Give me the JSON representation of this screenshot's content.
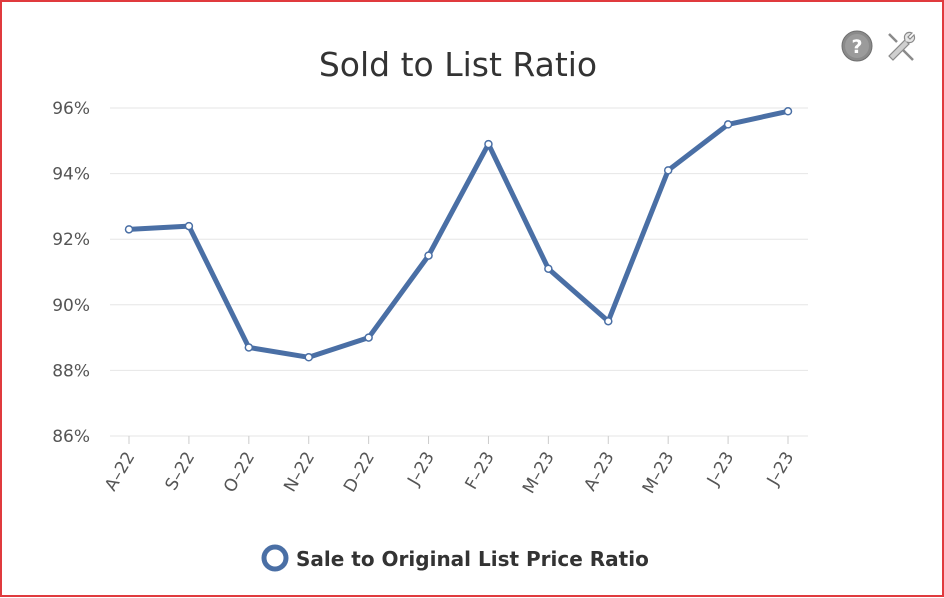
{
  "icons": {
    "help": "help-icon",
    "help_glyph": "?",
    "tools": "tools-icon"
  },
  "colors": {
    "border": "#e03a3e",
    "series": "#4a6fa5",
    "grid": "#e6e6e6"
  },
  "chart_data": {
    "type": "line",
    "title": "Sold to List Ratio",
    "xlabel": "",
    "ylabel": "",
    "categories": [
      "A–22",
      "S–22",
      "O–22",
      "N–22",
      "D–22",
      "J–23",
      "F–23",
      "M–23",
      "A–23",
      "M–23",
      "J–23",
      "J–23"
    ],
    "series": [
      {
        "name": "Sale to Original List Price Ratio",
        "values": [
          92.3,
          92.4,
          88.7,
          88.4,
          89.0,
          91.5,
          94.9,
          91.1,
          89.5,
          94.1,
          95.5,
          95.9
        ]
      }
    ],
    "ylim": [
      86,
      96
    ],
    "yticks": [
      96,
      94,
      92,
      90,
      88,
      86
    ],
    "ytick_labels": [
      "96%",
      "94%",
      "92%",
      "90%",
      "88%",
      "86%"
    ],
    "grid": true,
    "legend": "bottom"
  }
}
